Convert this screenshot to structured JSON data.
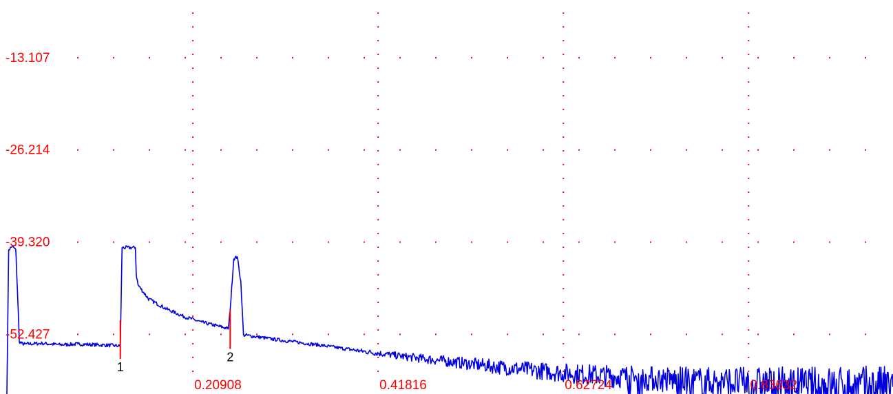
{
  "chart_data": {
    "type": "line",
    "title": "",
    "xlabel": "",
    "ylabel": "",
    "xlim": [
      0,
      1.0
    ],
    "ylim": [
      -61.0,
      -5.0
    ],
    "grid": true,
    "colors": {
      "trace": "#0000e0",
      "grid": "#ff0000",
      "label": "#ff0000",
      "marker_line": "#ff0000",
      "marker_text": "#000000"
    },
    "y_ticks": [
      {
        "value": -13.107,
        "label": "-13.107"
      },
      {
        "value": -26.214,
        "label": "-26.214"
      },
      {
        "value": -39.32,
        "label": "-39.320"
      },
      {
        "value": -52.427,
        "label": "-52.427"
      }
    ],
    "x_ticks": [
      {
        "value": 0.20908,
        "label": "0.20908"
      },
      {
        "value": 0.41816,
        "label": "0.41816"
      },
      {
        "value": 0.62724,
        "label": "0.62724"
      },
      {
        "value": 0.83632,
        "label": "0.83632"
      }
    ],
    "series": [
      {
        "x": [
          0.0,
          0.002,
          0.006,
          0.01,
          0.012,
          0.014,
          0.016,
          0.02,
          0.04,
          0.06,
          0.08,
          0.1,
          0.12,
          0.128,
          0.13,
          0.145,
          0.146,
          0.148,
          0.16,
          0.18,
          0.2,
          0.22,
          0.24,
          0.25,
          0.252,
          0.256,
          0.26,
          0.264,
          0.267,
          0.3,
          0.35,
          0.4,
          0.45,
          0.5,
          0.55,
          0.6,
          0.65,
          0.7,
          0.75,
          0.8,
          0.85,
          0.9,
          0.95,
          1.0
        ],
        "values": [
          -61.0,
          -40.5,
          -40.0,
          -40.5,
          -46.5,
          -53.5,
          -53.8,
          -53.9,
          -53.8,
          -54.0,
          -53.9,
          -54.0,
          -54.1,
          -54.2,
          -40.2,
          -40.2,
          -44.0,
          -45.5,
          -47.5,
          -48.9,
          -50.0,
          -50.8,
          -51.4,
          -51.7,
          -49.0,
          -41.8,
          -41.5,
          -45.0,
          -52.6,
          -53.2,
          -54.0,
          -54.9,
          -55.7,
          -56.4,
          -57.1,
          -57.7,
          -58.2,
          -58.6,
          -59.0,
          -59.3,
          -59.5,
          -59.7,
          -59.8,
          -60.0
        ],
        "noise_from_x": 0.38,
        "dropouts_from_x": 0.7
      }
    ],
    "markers": [
      {
        "label": "1",
        "x": 0.128,
        "y_top": -50.5,
        "y_bottom": -56.0
      },
      {
        "label": "2",
        "x": 0.252,
        "y_top": -49.0,
        "y_bottom": -54.6
      }
    ]
  }
}
